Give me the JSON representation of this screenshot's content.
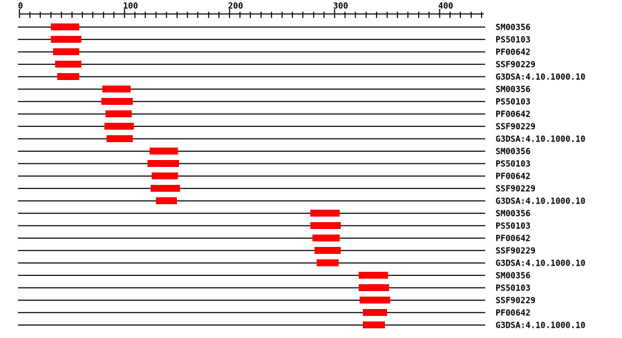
{
  "chart_data": {
    "type": "bar",
    "subtype": "protein-domain-track-plot",
    "orientation": "horizontal-range-bars",
    "title": "",
    "x_axis": {
      "min": 0,
      "max": 440,
      "major_ticks": [
        0,
        100,
        200,
        300,
        400
      ],
      "major_tick_labels": [
        "0",
        "100",
        "200",
        "300",
        "400"
      ],
      "minor_tick_step": 10
    },
    "legend": "none",
    "grid": "off",
    "bar_color": "#ff0000",
    "line_color": "#000000",
    "background_color": "#ffffff",
    "rows": [
      {
        "label": "SM00356",
        "start": 30,
        "end": 57
      },
      {
        "label": "PS50103",
        "start": 30,
        "end": 59
      },
      {
        "label": "PF00642",
        "start": 32,
        "end": 57
      },
      {
        "label": "SSF90229",
        "start": 34,
        "end": 59
      },
      {
        "label": "G3DSA:4.10.1000.10",
        "start": 36,
        "end": 57
      },
      {
        "label": "SM00356",
        "start": 79,
        "end": 106
      },
      {
        "label": "PS50103",
        "start": 78,
        "end": 108
      },
      {
        "label": "PF00642",
        "start": 82,
        "end": 107
      },
      {
        "label": "SSF90229",
        "start": 81,
        "end": 109
      },
      {
        "label": "G3DSA:4.10.1000.10",
        "start": 83,
        "end": 108
      },
      {
        "label": "SM00356",
        "start": 124,
        "end": 151
      },
      {
        "label": "PS50103",
        "start": 122,
        "end": 152
      },
      {
        "label": "PF00642",
        "start": 126,
        "end": 151
      },
      {
        "label": "SSF90229",
        "start": 125,
        "end": 153
      },
      {
        "label": "G3DSA:4.10.1000.10",
        "start": 130,
        "end": 150
      },
      {
        "label": "SM00356",
        "start": 277,
        "end": 305
      },
      {
        "label": "PS50103",
        "start": 277,
        "end": 306
      },
      {
        "label": "PF00642",
        "start": 279,
        "end": 305
      },
      {
        "label": "SSF90229",
        "start": 281,
        "end": 306
      },
      {
        "label": "G3DSA:4.10.1000.10",
        "start": 283,
        "end": 304
      },
      {
        "label": "SM00356",
        "start": 323,
        "end": 351
      },
      {
        "label": "PS50103",
        "start": 323,
        "end": 352
      },
      {
        "label": "SSF90229",
        "start": 324,
        "end": 353
      },
      {
        "label": "PF00642",
        "start": 327,
        "end": 350
      },
      {
        "label": "G3DSA:4.10.1000.10",
        "start": 327,
        "end": 348
      }
    ]
  }
}
